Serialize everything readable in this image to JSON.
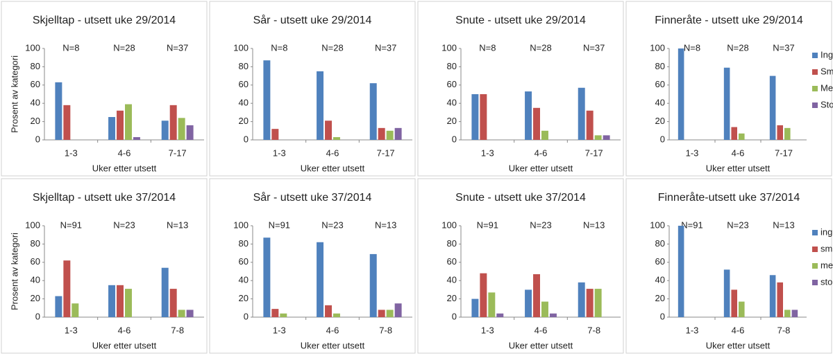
{
  "chart_data": [
    {
      "type": "bar",
      "title": "Skjelltap - utsett uke 29/2014",
      "y_label": "Prosent av kategori",
      "x_label": "Uker etter utsett",
      "categories": [
        "1-3",
        "4-6",
        "7-17"
      ],
      "annotations": [
        "N=8",
        "N=28",
        "N=37"
      ],
      "ylim": [
        0,
        100
      ],
      "yticks": [
        0,
        20,
        40,
        60,
        80,
        100
      ],
      "series": [
        {
          "color": "#4F81BD",
          "values": [
            63,
            25,
            21
          ]
        },
        {
          "color": "#C0504D",
          "values": [
            38,
            32,
            38
          ]
        },
        {
          "color": "#9BBB59",
          "values": [
            0,
            39,
            24
          ]
        },
        {
          "color": "#8064A2",
          "values": [
            0,
            3,
            16
          ]
        }
      ]
    },
    {
      "type": "bar",
      "title": "Sår - utsett uke 29/2014",
      "x_label": "Uker etter utsett",
      "categories": [
        "1-3",
        "4-6",
        "7-17"
      ],
      "annotations": [
        "N=8",
        "N=28",
        "N=37"
      ],
      "ylim": [
        0,
        100
      ],
      "yticks": [
        0,
        20,
        40,
        60,
        80,
        100
      ],
      "series": [
        {
          "color": "#4F81BD",
          "values": [
            87,
            75,
            62
          ]
        },
        {
          "color": "#C0504D",
          "values": [
            12,
            21,
            13
          ]
        },
        {
          "color": "#9BBB59",
          "values": [
            0,
            3,
            10
          ]
        },
        {
          "color": "#8064A2",
          "values": [
            0,
            0,
            13
          ]
        }
      ]
    },
    {
      "type": "bar",
      "title": "Snute - utsett uke 29/2014",
      "x_label": "Uker etter utsett",
      "categories": [
        "1-3",
        "4-6",
        "7-17"
      ],
      "annotations": [
        "N=8",
        "N=28",
        "N=37"
      ],
      "ylim": [
        0,
        100
      ],
      "yticks": [
        0,
        20,
        40,
        60,
        80,
        100
      ],
      "series": [
        {
          "color": "#4F81BD",
          "values": [
            50,
            53,
            57
          ]
        },
        {
          "color": "#C0504D",
          "values": [
            50,
            35,
            32
          ]
        },
        {
          "color": "#9BBB59",
          "values": [
            0,
            10,
            5
          ]
        },
        {
          "color": "#8064A2",
          "values": [
            0,
            0,
            5
          ]
        }
      ]
    },
    {
      "type": "bar",
      "title": "Finneråte - utsett uke 29/2014",
      "x_label": "Uker etter utsett",
      "categories": [
        "1-3",
        "4-6",
        "7-17"
      ],
      "annotations": [
        "N=8",
        "N=28",
        "N=37"
      ],
      "ylim": [
        0,
        100
      ],
      "yticks": [
        0,
        20,
        40,
        60,
        80,
        100
      ],
      "series": [
        {
          "name": "Ingen",
          "color": "#4F81BD",
          "values": [
            100,
            79,
            70
          ]
        },
        {
          "name": "Små",
          "color": "#C0504D",
          "values": [
            0,
            14,
            16
          ]
        },
        {
          "name": "Medio",
          "color": "#9BBB59",
          "values": [
            0,
            7,
            13
          ]
        },
        {
          "name": "Store",
          "color": "#8064A2",
          "values": [
            0,
            0,
            0
          ]
        }
      ]
    },
    {
      "type": "bar",
      "title": "Skjelltap - utsett uke 37/2014",
      "y_label": "Prosent av kategori",
      "x_label": "Uker etter utsett",
      "categories": [
        "1-3",
        "4-6",
        "7-8"
      ],
      "annotations": [
        "N=91",
        "N=23",
        "N=13"
      ],
      "ylim": [
        0,
        100
      ],
      "yticks": [
        0,
        20,
        40,
        60,
        80,
        100
      ],
      "series": [
        {
          "color": "#4F81BD",
          "values": [
            23,
            35,
            54
          ]
        },
        {
          "color": "#C0504D",
          "values": [
            62,
            35,
            31
          ]
        },
        {
          "color": "#9BBB59",
          "values": [
            15,
            31,
            8
          ]
        },
        {
          "color": "#8064A2",
          "values": [
            0,
            0,
            8
          ]
        }
      ]
    },
    {
      "type": "bar",
      "title": "Sår - utsett uke 37/2014",
      "x_label": "Uker etter utsett",
      "categories": [
        "1-3",
        "4-6",
        "7-8"
      ],
      "annotations": [
        "N=91",
        "N=23",
        "N=13"
      ],
      "ylim": [
        0,
        100
      ],
      "yticks": [
        0,
        20,
        40,
        60,
        80,
        100
      ],
      "series": [
        {
          "color": "#4F81BD",
          "values": [
            87,
            82,
            69
          ]
        },
        {
          "color": "#C0504D",
          "values": [
            9,
            13,
            8
          ]
        },
        {
          "color": "#9BBB59",
          "values": [
            4,
            4,
            8
          ]
        },
        {
          "color": "#8064A2",
          "values": [
            0,
            0,
            15
          ]
        }
      ]
    },
    {
      "type": "bar",
      "title": "Snute - utsett uke 37/2014",
      "x_label": "Uker etter utsett",
      "categories": [
        "1-3",
        "4-6",
        "7-8"
      ],
      "annotations": [
        "N=91",
        "N=23",
        "N=13"
      ],
      "ylim": [
        0,
        100
      ],
      "yticks": [
        0,
        20,
        40,
        60,
        80,
        100
      ],
      "series": [
        {
          "color": "#4F81BD",
          "values": [
            20,
            30,
            38
          ]
        },
        {
          "color": "#C0504D",
          "values": [
            48,
            47,
            31
          ]
        },
        {
          "color": "#9BBB59",
          "values": [
            27,
            17,
            31
          ]
        },
        {
          "color": "#8064A2",
          "values": [
            4,
            4,
            0
          ]
        }
      ]
    },
    {
      "type": "bar",
      "title": "Finneråte-utsett uke 37/2014",
      "x_label": "Uker etter utsett",
      "categories": [
        "1-3",
        "4-6",
        "7-8"
      ],
      "annotations": [
        "N=91",
        "N=23",
        "N=13"
      ],
      "ylim": [
        0,
        100
      ],
      "yticks": [
        0,
        20,
        40,
        60,
        80,
        100
      ],
      "series": [
        {
          "name": "ingen",
          "color": "#4F81BD",
          "values": [
            100,
            52,
            46
          ]
        },
        {
          "name": "små",
          "color": "#C0504D",
          "values": [
            0,
            30,
            38
          ]
        },
        {
          "name": "medio",
          "color": "#9BBB59",
          "values": [
            0,
            17,
            8
          ]
        },
        {
          "name": "store",
          "color": "#8064A2",
          "values": [
            0,
            0,
            8
          ]
        }
      ]
    }
  ]
}
